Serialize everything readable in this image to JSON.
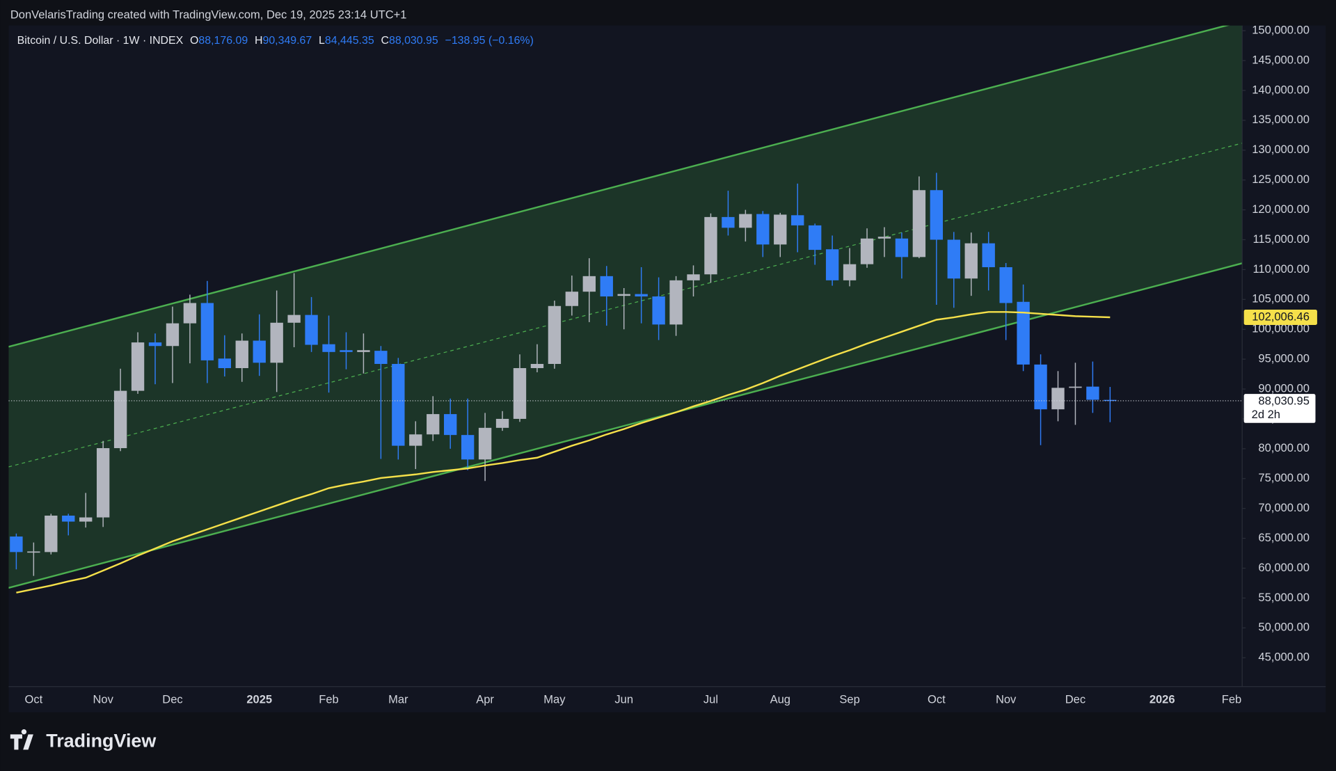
{
  "header": {
    "credit": "DonVelarisTrading created with TradingView.com, Dec 19, 2025 23:14 UTC+1",
    "brand": "TradingView"
  },
  "chart_data": {
    "type": "candlestick",
    "title": "Bitcoin / U.S. Dollar · 1W · INDEX",
    "legend_ohlc": [
      {
        "key": "O",
        "value": "88,176.09"
      },
      {
        "key": "H",
        "value": "90,349.67"
      },
      {
        "key": "L",
        "value": "84,445.35"
      },
      {
        "key": "C",
        "value": "88,030.95"
      }
    ],
    "legend_change": "−138.95 (−0.16%)",
    "categories": [
      null,
      "Oct",
      null,
      null,
      null,
      "Nov",
      null,
      null,
      null,
      "Dec",
      null,
      null,
      null,
      null,
      "2025",
      null,
      null,
      null,
      "Feb",
      null,
      null,
      null,
      "Mar",
      null,
      null,
      null,
      null,
      "Apr",
      null,
      null,
      null,
      "May",
      null,
      null,
      null,
      "Jun",
      null,
      null,
      null,
      null,
      "Jul",
      null,
      null,
      null,
      "Aug",
      null,
      null,
      null,
      "Sep",
      null,
      null,
      null,
      null,
      "Oct",
      null,
      null,
      null,
      "Nov",
      null,
      null,
      null,
      "Dec",
      null,
      null,
      null,
      null,
      "2026",
      null,
      null,
      null,
      "Feb"
    ],
    "open": [
      65300,
      62600,
      62700,
      68800,
      67800,
      68500,
      80100,
      89700,
      97800,
      97200,
      101000,
      104400,
      95100,
      93500,
      98100,
      94400,
      101100,
      102400,
      97500,
      96500,
      96200,
      96400,
      94200,
      80500,
      82400,
      85800,
      82300,
      78200,
      83500,
      85000,
      93500,
      94200,
      103900,
      106300,
      108900,
      105600,
      105900,
      105500,
      100800,
      108200,
      109200,
      118800,
      117000,
      119300,
      114200,
      119100,
      117400,
      113400,
      108200,
      110900,
      115200,
      115200,
      112100,
      123300,
      115000,
      108500,
      114400,
      110400,
      104600,
      94100,
      86600,
      90200,
      90400,
      88176.09,
      null,
      null,
      null,
      null,
      null,
      null,
      null
    ],
    "high": [
      65800,
      64300,
      69100,
      69100,
      72600,
      81300,
      93400,
      99500,
      99300,
      103800,
      105800,
      108100,
      99000,
      99300,
      102500,
      106500,
      109400,
      105400,
      102300,
      99500,
      99300,
      97200,
      95200,
      84600,
      88800,
      88400,
      88400,
      86000,
      86300,
      95800,
      97500,
      104800,
      109000,
      111900,
      110600,
      106900,
      110400,
      108700,
      108900,
      110700,
      119400,
      123200,
      120000,
      119800,
      119500,
      124400,
      117700,
      115700,
      113600,
      116900,
      117100,
      116200,
      125600,
      126200,
      116300,
      116200,
      116300,
      111100,
      107500,
      95800,
      93000,
      94400,
      94600,
      90349.67,
      null,
      null,
      null,
      null,
      null,
      null,
      null
    ],
    "low": [
      59800,
      58700,
      62300,
      65500,
      66800,
      66900,
      79600,
      89200,
      90800,
      91000,
      94300,
      91000,
      92100,
      91200,
      92200,
      89500,
      97000,
      96200,
      89400,
      93300,
      92600,
      78300,
      78200,
      76600,
      81300,
      80000,
      76400,
      74600,
      83000,
      84500,
      92800,
      93400,
      102300,
      101200,
      100600,
      100000,
      101000,
      98200,
      98900,
      105500,
      107800,
      115700,
      114700,
      112100,
      112100,
      112900,
      110800,
      107300,
      107200,
      110300,
      112100,
      108500,
      111900,
      104100,
      103600,
      105600,
      106500,
      98200,
      93000,
      80600,
      84600,
      84000,
      86000,
      84445.35,
      null,
      null,
      null,
      null,
      null,
      null,
      null
    ],
    "close": [
      62700,
      62800,
      68800,
      67800,
      68500,
      80100,
      89700,
      97800,
      97200,
      101000,
      104400,
      94800,
      93500,
      98100,
      94400,
      101100,
      102400,
      97400,
      96200,
      96200,
      96500,
      94200,
      80500,
      82400,
      85800,
      82300,
      78200,
      83500,
      85000,
      93500,
      94200,
      103900,
      106300,
      108900,
      105500,
      105900,
      105500,
      100800,
      108200,
      109200,
      118800,
      117000,
      119300,
      114200,
      119200,
      117400,
      113300,
      108200,
      110900,
      115200,
      115500,
      112100,
      123300,
      115000,
      108500,
      114400,
      110400,
      104400,
      94100,
      86600,
      90200,
      90400,
      88200,
      88030.95,
      null,
      null,
      null,
      null,
      null,
      null,
      null
    ],
    "close_value_labels": [
      null,
      null,
      null,
      null,
      null,
      null,
      null,
      null,
      null,
      null,
      null,
      null,
      null,
      null,
      null,
      null,
      null,
      null,
      null,
      null,
      null,
      null,
      null,
      null,
      null,
      null,
      null,
      null,
      null,
      null,
      null,
      null,
      null,
      null,
      null,
      null,
      null,
      null,
      null,
      null,
      null,
      null,
      null,
      null,
      null,
      null,
      null,
      null,
      null,
      null,
      null,
      null,
      null,
      null,
      null,
      null,
      null,
      null,
      null,
      null,
      null,
      null,
      null,
      "88,030.95",
      null,
      null,
      null,
      null,
      null,
      null,
      null
    ],
    "countdown": "2d 2h",
    "up_color": "#b2b5be",
    "down_color": "#2f7cf6",
    "ma": {
      "color": "#f5e04a",
      "values": [
        55900,
        56500,
        57100,
        57800,
        58400,
        59600,
        60800,
        62100,
        63300,
        64500,
        65500,
        66500,
        67500,
        68500,
        69500,
        70500,
        71500,
        72400,
        73400,
        74000,
        74500,
        75100,
        75400,
        75700,
        76100,
        76400,
        76700,
        77200,
        77600,
        78100,
        78500,
        79500,
        80500,
        81400,
        82400,
        83300,
        84300,
        85200,
        86100,
        87100,
        88000,
        89000,
        89900,
        91000,
        92200,
        93300,
        94400,
        95500,
        96500,
        97600,
        98600,
        99600,
        100600,
        101600,
        102000,
        102500,
        102900,
        102900,
        102800,
        102600,
        102400,
        102200,
        102100,
        102006.46,
        null,
        null,
        null,
        null,
        null,
        null,
        null
      ],
      "value_labels": [
        null,
        null,
        null,
        null,
        null,
        null,
        null,
        null,
        null,
        null,
        null,
        null,
        null,
        null,
        null,
        null,
        null,
        null,
        null,
        null,
        null,
        null,
        null,
        null,
        null,
        null,
        null,
        null,
        null,
        null,
        null,
        null,
        null,
        null,
        null,
        null,
        null,
        null,
        null,
        null,
        null,
        null,
        null,
        null,
        null,
        null,
        null,
        null,
        null,
        null,
        null,
        null,
        null,
        null,
        null,
        null,
        null,
        null,
        null,
        null,
        null,
        null,
        null,
        "102,006.46",
        null,
        null,
        null,
        null,
        null,
        null,
        null
      ]
    },
    "ylim": [
      40160,
      150860
    ],
    "yticks": [
      {
        "value": 45000,
        "label": "45,000.00"
      },
      {
        "value": 50000,
        "label": "50,000.00"
      },
      {
        "value": 55000,
        "label": "55,000.00"
      },
      {
        "value": 60000,
        "label": "60,000.00"
      },
      {
        "value": 65000,
        "label": "65,000.00"
      },
      {
        "value": 70000,
        "label": "70,000.00"
      },
      {
        "value": 75000,
        "label": "75,000.00"
      },
      {
        "value": 80000,
        "label": "80,000.00"
      },
      {
        "value": 85000,
        "label": "85,000.00"
      },
      {
        "value": 90000,
        "label": "90,000.00"
      },
      {
        "value": 95000,
        "label": "95,000.00"
      },
      {
        "value": 100000,
        "label": "100,000.00"
      },
      {
        "value": 105000,
        "label": "105,000.00"
      },
      {
        "value": 110000,
        "label": "110,000.00"
      },
      {
        "value": 115000,
        "label": "115,000.00"
      },
      {
        "value": 120000,
        "label": "120,000.00"
      },
      {
        "value": 125000,
        "label": "125,000.00"
      },
      {
        "value": 130000,
        "label": "130,000.00"
      },
      {
        "value": 135000,
        "label": "135,000.00"
      },
      {
        "value": 140000,
        "label": "140,000.00"
      },
      {
        "value": 145000,
        "label": "145,000.00"
      },
      {
        "value": 150000,
        "label": "150,000.00"
      }
    ],
    "grid": false
  }
}
